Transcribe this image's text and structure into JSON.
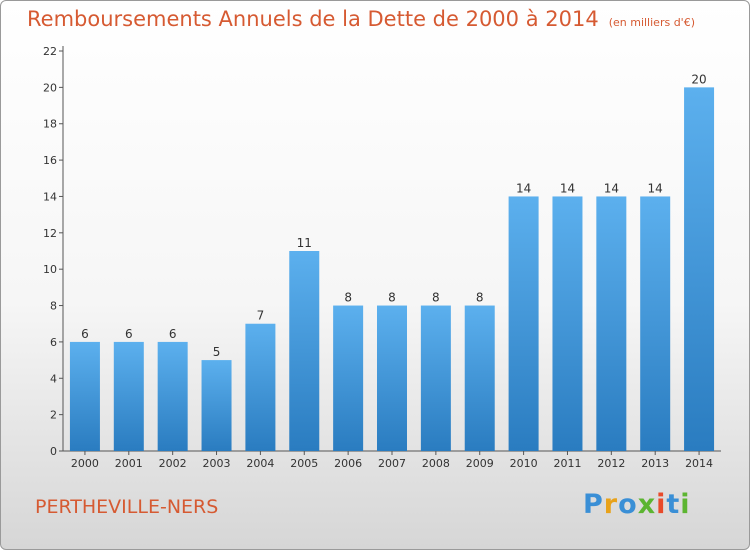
{
  "header": {
    "title": "Remboursements Annuels de la Dette de 2000 à 2014",
    "subtitle": "(en milliers d'€)"
  },
  "footer": {
    "commune": "PERTHEVILLE-NERS",
    "logo_letters": [
      "P",
      "r",
      "o",
      "x",
      "i",
      "t",
      "i"
    ],
    "logo_colors": [
      "#3a8fd6",
      "#e8a21a",
      "#3a8fd6",
      "#5cb531",
      "#e84a2a",
      "#3a8fd6",
      "#5cb531"
    ]
  },
  "chart_data": {
    "type": "bar",
    "title": "Remboursements Annuels de la Dette de 2000 à 2014",
    "categories": [
      "2000",
      "2001",
      "2002",
      "2003",
      "2004",
      "2005",
      "2006",
      "2007",
      "2008",
      "2009",
      "2010",
      "2011",
      "2012",
      "2013",
      "2014"
    ],
    "values": [
      6,
      6,
      6,
      5,
      7,
      11,
      8,
      8,
      8,
      8,
      14,
      14,
      14,
      14,
      20
    ],
    "ylim": [
      0,
      22
    ],
    "yticks": [
      0,
      2,
      4,
      6,
      8,
      10,
      12,
      14,
      16,
      18,
      20,
      22
    ],
    "grid": false,
    "bar_color": "#3f96d8",
    "xlabel": "",
    "ylabel": ""
  }
}
